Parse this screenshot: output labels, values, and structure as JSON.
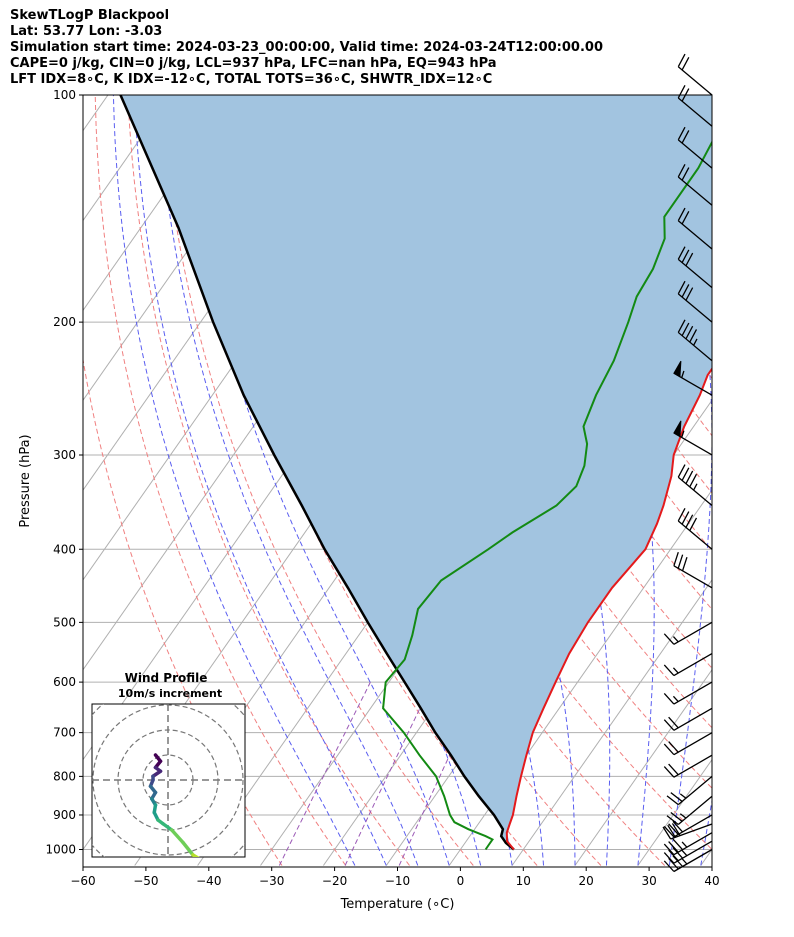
{
  "header": {
    "line1": "SkewTLogP Blackpool",
    "line2": "Lat: 53.77   Lon: -3.03",
    "line3": "Simulation start time: 2024-03-23_00:00:00, Valid time: 2024-03-24T12:00:00.00",
    "line4": "CAPE=0 j/kg, CIN=0 j/kg, LCL=937 hPa, LFC=nan hPa, EQ=943 hPa",
    "line5": "LFT IDX=8∘C, K IDX=-12∘C, TOTAL TOTS=36∘C, SHWTR_IDX=12∘C"
  },
  "chart_data": {
    "type": "line",
    "subtype": "skew-t log-p",
    "xlabel": "Temperature (∘C)",
    "ylabel": "Pressure (hPa)",
    "xlim": [
      -60,
      40
    ],
    "ylim": [
      1050,
      100
    ],
    "y_scale": "log",
    "grid": true,
    "x_ticks": [
      "−60",
      "−50",
      "−40",
      "−30",
      "−20",
      "−10",
      "0",
      "10",
      "20",
      "30",
      "40"
    ],
    "y_ticks": [
      {
        "p": 100,
        "label": "100"
      },
      {
        "p": 200,
        "label": "200"
      },
      {
        "p": 300,
        "label": "300"
      },
      {
        "p": 400,
        "label": "400"
      },
      {
        "p": 500,
        "label": "500"
      },
      {
        "p": 600,
        "label": "600"
      },
      {
        "p": 700,
        "label": "700"
      },
      {
        "p": 800,
        "label": "800"
      },
      {
        "p": 900,
        "label": "900"
      },
      {
        "p": 1000,
        "label": "1000"
      }
    ],
    "colors": {
      "temperature": "#e41a1c",
      "dewpoint": "#138a13",
      "parcel": "#000000",
      "cape_fill": "#a2c4e0",
      "dry_adiabat": "#f08080",
      "moist_adiabat": "#5a5ef0",
      "mixing_ratio": "#9b59b6",
      "isotherm": "#b0b0b0"
    },
    "series": [
      {
        "key": "temperature",
        "points": [
          [
            1000,
            8.5
          ],
          [
            975,
            6.5
          ],
          [
            950,
            5.5
          ],
          [
            925,
            5.0
          ],
          [
            900,
            4.5
          ],
          [
            850,
            3.0
          ],
          [
            800,
            1.5
          ],
          [
            750,
            0.0
          ],
          [
            700,
            -1.5
          ],
          [
            650,
            -2.5
          ],
          [
            600,
            -3.5
          ],
          [
            550,
            -4.5
          ],
          [
            500,
            -5.0
          ],
          [
            450,
            -5.0
          ],
          [
            400,
            -4.0
          ],
          [
            370,
            -5.0
          ],
          [
            350,
            -6.0
          ],
          [
            320,
            -8.0
          ],
          [
            300,
            -10.0
          ],
          [
            275,
            -11.5
          ],
          [
            250,
            -12.5
          ],
          [
            235,
            -13.5
          ],
          [
            220,
            -13.5
          ],
          [
            210,
            -13.0
          ],
          [
            200,
            -11.5
          ],
          [
            185,
            -8.5
          ],
          [
            170,
            -6.0
          ],
          [
            150,
            -3.0
          ],
          [
            130,
            0.0
          ],
          [
            120,
            1.0
          ],
          [
            110,
            1.0
          ],
          [
            100,
            1.0
          ]
        ]
      },
      {
        "key": "dewpoint",
        "points": [
          [
            1000,
            4.0
          ],
          [
            985,
            4.0
          ],
          [
            970,
            4.0
          ],
          [
            960,
            2.5
          ],
          [
            940,
            -1.0
          ],
          [
            920,
            -4.0
          ],
          [
            900,
            -5.5
          ],
          [
            850,
            -8.5
          ],
          [
            800,
            -12.0
          ],
          [
            750,
            -17.0
          ],
          [
            700,
            -22.0
          ],
          [
            650,
            -28.0
          ],
          [
            600,
            -30.5
          ],
          [
            560,
            -30.0
          ],
          [
            520,
            -31.5
          ],
          [
            480,
            -33.5
          ],
          [
            440,
            -33.0
          ],
          [
            400,
            -29.0
          ],
          [
            380,
            -27.0
          ],
          [
            350,
            -23.0
          ],
          [
            330,
            -22.0
          ],
          [
            310,
            -23.0
          ],
          [
            290,
            -25.0
          ],
          [
            275,
            -27.5
          ],
          [
            250,
            -29.0
          ],
          [
            225,
            -30.0
          ],
          [
            200,
            -32.0
          ],
          [
            185,
            -33.5
          ],
          [
            170,
            -34.0
          ],
          [
            155,
            -35.5
          ],
          [
            145,
            -38.0
          ],
          [
            125,
            -38.0
          ],
          [
            100,
            -40.0
          ]
        ]
      },
      {
        "key": "parcel",
        "points": [
          [
            1000,
            8.5
          ],
          [
            980,
            6.5
          ],
          [
            960,
            5.0
          ],
          [
            940,
            4.5
          ],
          [
            900,
            1.5
          ],
          [
            850,
            -3.0
          ],
          [
            800,
            -7.5
          ],
          [
            750,
            -12.0
          ],
          [
            700,
            -17.0
          ],
          [
            650,
            -22.0
          ],
          [
            600,
            -27.5
          ],
          [
            550,
            -33.5
          ],
          [
            500,
            -40.0
          ],
          [
            450,
            -47.0
          ],
          [
            400,
            -55.0
          ],
          [
            350,
            -63.5
          ],
          [
            300,
            -73.5
          ],
          [
            250,
            -85.0
          ],
          [
            200,
            -98.0
          ],
          [
            150,
            -114.0
          ],
          [
            100,
            -138.0
          ]
        ]
      }
    ],
    "winds": [
      {
        "p": 1000,
        "speed": 35,
        "dir": 240
      },
      {
        "p": 975,
        "speed": 35,
        "dir": 240
      },
      {
        "p": 950,
        "speed": 35,
        "dir": 240
      },
      {
        "p": 925,
        "speed": 30,
        "dir": 250
      },
      {
        "p": 900,
        "speed": 30,
        "dir": 240
      },
      {
        "p": 850,
        "speed": 25,
        "dir": 230
      },
      {
        "p": 800,
        "speed": 25,
        "dir": 230
      },
      {
        "p": 750,
        "speed": 20,
        "dir": 240
      },
      {
        "p": 700,
        "speed": 20,
        "dir": 240
      },
      {
        "p": 650,
        "speed": 20,
        "dir": 240
      },
      {
        "p": 600,
        "speed": 15,
        "dir": 240
      },
      {
        "p": 550,
        "speed": 15,
        "dir": 240
      },
      {
        "p": 500,
        "speed": 15,
        "dir": 240
      },
      {
        "p": 450,
        "speed": 30,
        "dir": 300
      },
      {
        "p": 400,
        "speed": 40,
        "dir": 310
      },
      {
        "p": 350,
        "speed": 45,
        "dir": 310
      },
      {
        "p": 300,
        "speed": 55,
        "dir": 300
      },
      {
        "p": 250,
        "speed": 55,
        "dir": 300
      },
      {
        "p": 225,
        "speed": 45,
        "dir": 310
      },
      {
        "p": 200,
        "speed": 30,
        "dir": 310
      },
      {
        "p": 180,
        "speed": 30,
        "dir": 310
      },
      {
        "p": 160,
        "speed": 20,
        "dir": 310
      },
      {
        "p": 140,
        "speed": 20,
        "dir": 310
      },
      {
        "p": 125,
        "speed": 20,
        "dir": 310
      },
      {
        "p": 110,
        "speed": 20,
        "dir": 310
      },
      {
        "p": 100,
        "speed": 20,
        "dir": 310
      }
    ],
    "inset": {
      "title_line1": "Wind Profile",
      "title_line2": "10m/s increment",
      "hodograph": [
        [
          -1.0,
          -2.0
        ],
        [
          -0.6,
          -1.5
        ],
        [
          -1.0,
          -1.0
        ],
        [
          -0.6,
          -0.7
        ],
        [
          -1.2,
          -0.3
        ],
        [
          -1.2,
          0.0
        ],
        [
          -1.4,
          0.5
        ],
        [
          -1.0,
          1.0
        ],
        [
          -1.3,
          1.5
        ],
        [
          -1.0,
          2.0
        ],
        [
          -1.1,
          2.6
        ],
        [
          -0.8,
          3.2
        ],
        [
          -0.4,
          3.5
        ],
        [
          0.3,
          4.0
        ],
        [
          1.2,
          5.0
        ],
        [
          2.0,
          6.0
        ],
        [
          3.0,
          6.6
        ],
        [
          3.5,
          7.2
        ],
        [
          4.0,
          7.8
        ]
      ],
      "hodograph_colors": [
        "#440154",
        "#482878",
        "#3e4a89",
        "#31688e",
        "#26828e",
        "#1f9e89",
        "#35b779",
        "#6ece58",
        "#b5de2b",
        "#fde725"
      ]
    }
  }
}
